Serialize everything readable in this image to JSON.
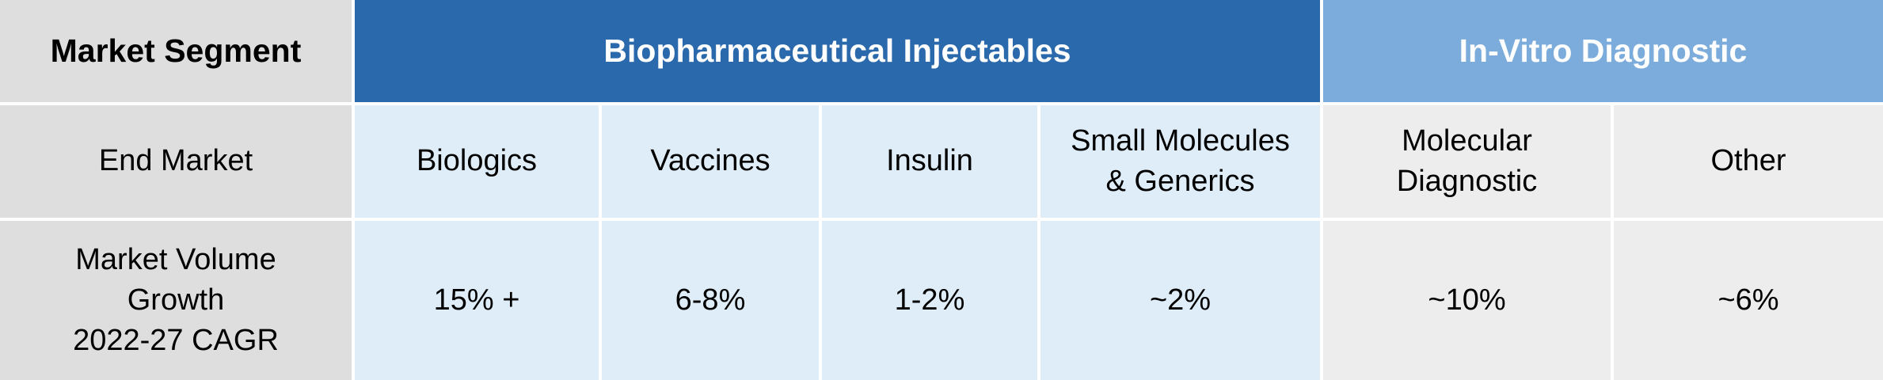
{
  "header": {
    "label": "Market Segment",
    "groups": [
      {
        "label": "Biopharmaceutical Injectables",
        "color": "#2a69ab"
      },
      {
        "label": "In-Vitro Diagnostic",
        "color": "#7bacdb"
      }
    ]
  },
  "end_market": {
    "label": "End Market",
    "cells": [
      "Biologics",
      "Vaccines",
      "Insulin",
      "Small Molecules\n& Generics",
      "Molecular\nDiagnostic",
      "Other"
    ]
  },
  "growth": {
    "label": "Market Volume\nGrowth\n2022-27 CAGR",
    "cells": [
      "15% +",
      "6-8%",
      "1-2%",
      "~2%",
      "~10%",
      "~6%"
    ]
  },
  "colors": {
    "label_bg": "#dedede",
    "bio_cell_bg": "#dfedf8",
    "ivd_cell_bg": "#ededed"
  }
}
